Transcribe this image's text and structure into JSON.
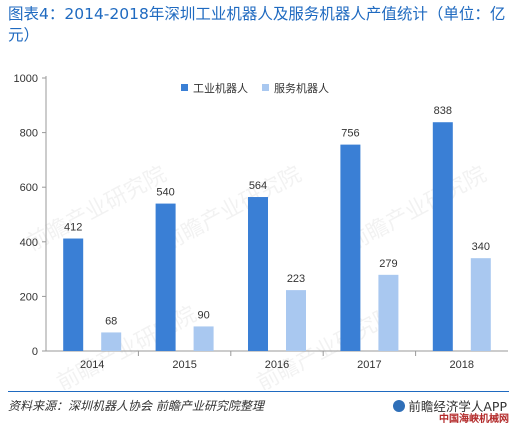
{
  "title": "图表4：2014-2018年深圳工业机器人及服务机器人产值统计（单位：亿元）",
  "source": "资料来源：深圳机器人协会  前瞻产业研究院整理",
  "brand": "前瞻经济学人APP",
  "site": "中国海峡机械网",
  "watermark": "前瞻产业研究院",
  "colors": {
    "industrial": "#3a7fd5",
    "service": "#a9c8f0",
    "accent": "#1f6ac0"
  },
  "chart_data": {
    "type": "bar",
    "categories": [
      "2014",
      "2015",
      "2016",
      "2017",
      "2018"
    ],
    "series": [
      {
        "name": "工业机器人",
        "values": [
          412,
          540,
          564,
          756,
          838
        ]
      },
      {
        "name": "服务机器人",
        "values": [
          68,
          90,
          223,
          279,
          340
        ]
      }
    ],
    "ylim": [
      0,
      1000
    ],
    "yticks": [
      0,
      200,
      400,
      600,
      800,
      1000
    ],
    "legend": "top-right",
    "grid": false
  }
}
